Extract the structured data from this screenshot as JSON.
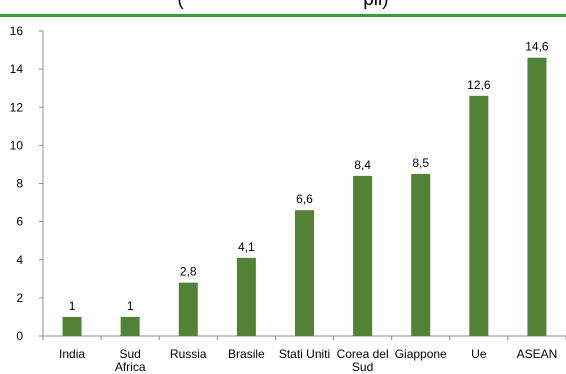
{
  "colors": {
    "bar": "#538135",
    "title_rule": "#3a9a3a",
    "axis": "#8c8c8c"
  },
  "chart_data": {
    "type": "bar",
    "title": "(                                  pil)",
    "categories": [
      "India",
      "Sud Africa",
      "Russia",
      "Brasile",
      "Stati Uniti",
      "Corea del Sud",
      "Giappone",
      "Ue",
      "ASEAN"
    ],
    "values": [
      1,
      1,
      2.8,
      4.1,
      6.6,
      8.4,
      8.5,
      12.6,
      14.6
    ],
    "data_labels": [
      "1",
      "1",
      "2,8",
      "4,1",
      "6,6",
      "8,4",
      "8,5",
      "12,6",
      "14,6"
    ],
    "ylim": [
      0,
      16
    ],
    "yticks": [
      0,
      2,
      4,
      6,
      8,
      10,
      12,
      14,
      16
    ],
    "grid": false,
    "xlabel": "",
    "ylabel": ""
  }
}
